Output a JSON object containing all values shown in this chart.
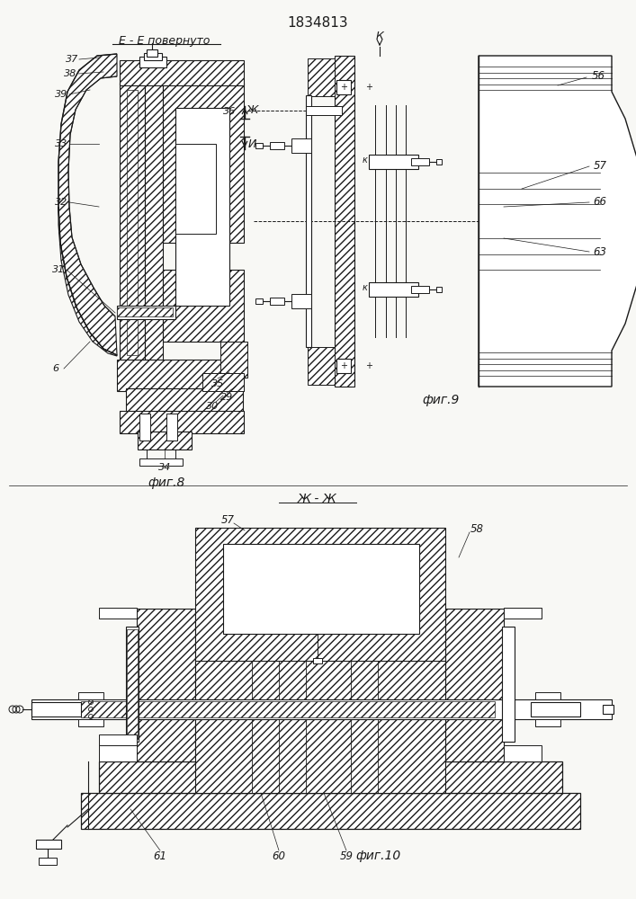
{
  "title": "1834813",
  "bg_color": "#f8f8f5",
  "line_color": "#1a1a1a",
  "fig8_label": "фиг.8",
  "fig9_label": "фиг.9",
  "fig10_label": "фиг.10",
  "section_ee": "Е - Е повернуто",
  "section_zhzh": "Ж - Ж",
  "label_zh": "Ж",
  "label_i": "И",
  "label_k": "К",
  "label_k_small": "к"
}
